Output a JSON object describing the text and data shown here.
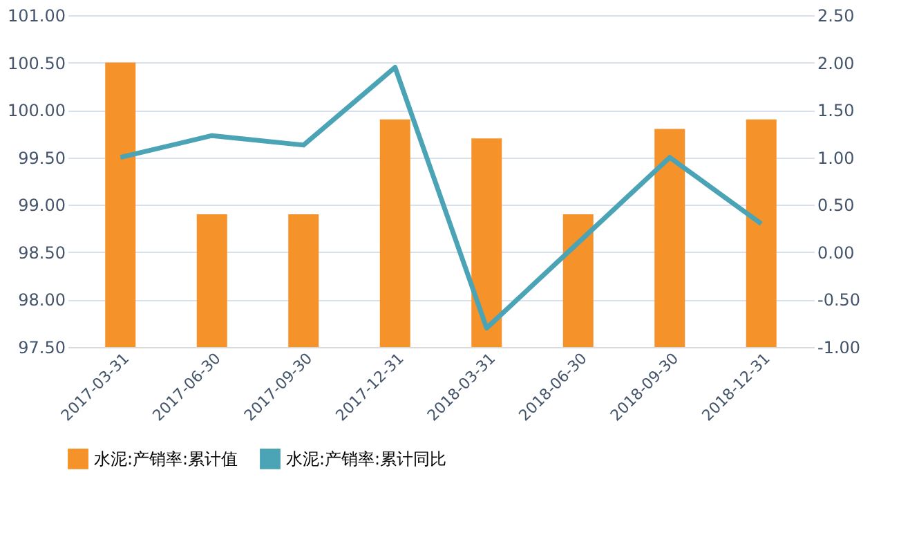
{
  "chart_data": {
    "type": "bar",
    "categories": [
      "2017-03-31",
      "2017-06-30",
      "2017-09-30",
      "2017-12-31",
      "2018-03-31",
      "2018-06-30",
      "2018-09-30",
      "2018-12-31"
    ],
    "series": [
      {
        "name": "水泥:产销率:累计值",
        "color": "#f5922a",
        "values": [
          100.5,
          98.9,
          98.9,
          99.9,
          99.7,
          98.9,
          99.8,
          99.9
        ]
      },
      {
        "name": "水泥:产销率:累计同比",
        "type": "line",
        "axis": "y2",
        "color": "#4ba3b6",
        "values": [
          1.0,
          1.23,
          1.13,
          1.95,
          -0.8,
          0.1,
          1.0,
          0.3
        ]
      }
    ],
    "ylim": [
      97.5,
      101.0
    ],
    "yticks": [
      {
        "value": 97.5,
        "label": "97.50"
      },
      {
        "value": 98.0,
        "label": "98.00"
      },
      {
        "value": 98.5,
        "label": "98.50"
      },
      {
        "value": 99.0,
        "label": "99.00"
      },
      {
        "value": 99.5,
        "label": "99.50"
      },
      {
        "value": 100.0,
        "label": "100.00"
      },
      {
        "value": 100.5,
        "label": "100.50"
      },
      {
        "value": 101.0,
        "label": "101.00"
      }
    ],
    "y2lim": [
      -1.0,
      2.5
    ],
    "y2ticks": [
      {
        "value": -1.0,
        "label": "-1.00"
      },
      {
        "value": -0.5,
        "label": "-0.50"
      },
      {
        "value": 0.0,
        "label": "0.00"
      },
      {
        "value": 0.5,
        "label": "0.50"
      },
      {
        "value": 1.0,
        "label": "1.00"
      },
      {
        "value": 1.5,
        "label": "1.50"
      },
      {
        "value": 2.0,
        "label": "2.00"
      },
      {
        "value": 2.5,
        "label": "2.50"
      }
    ],
    "grid": "y",
    "legend": "bottom",
    "marker": "none",
    "line_style": "solid"
  }
}
